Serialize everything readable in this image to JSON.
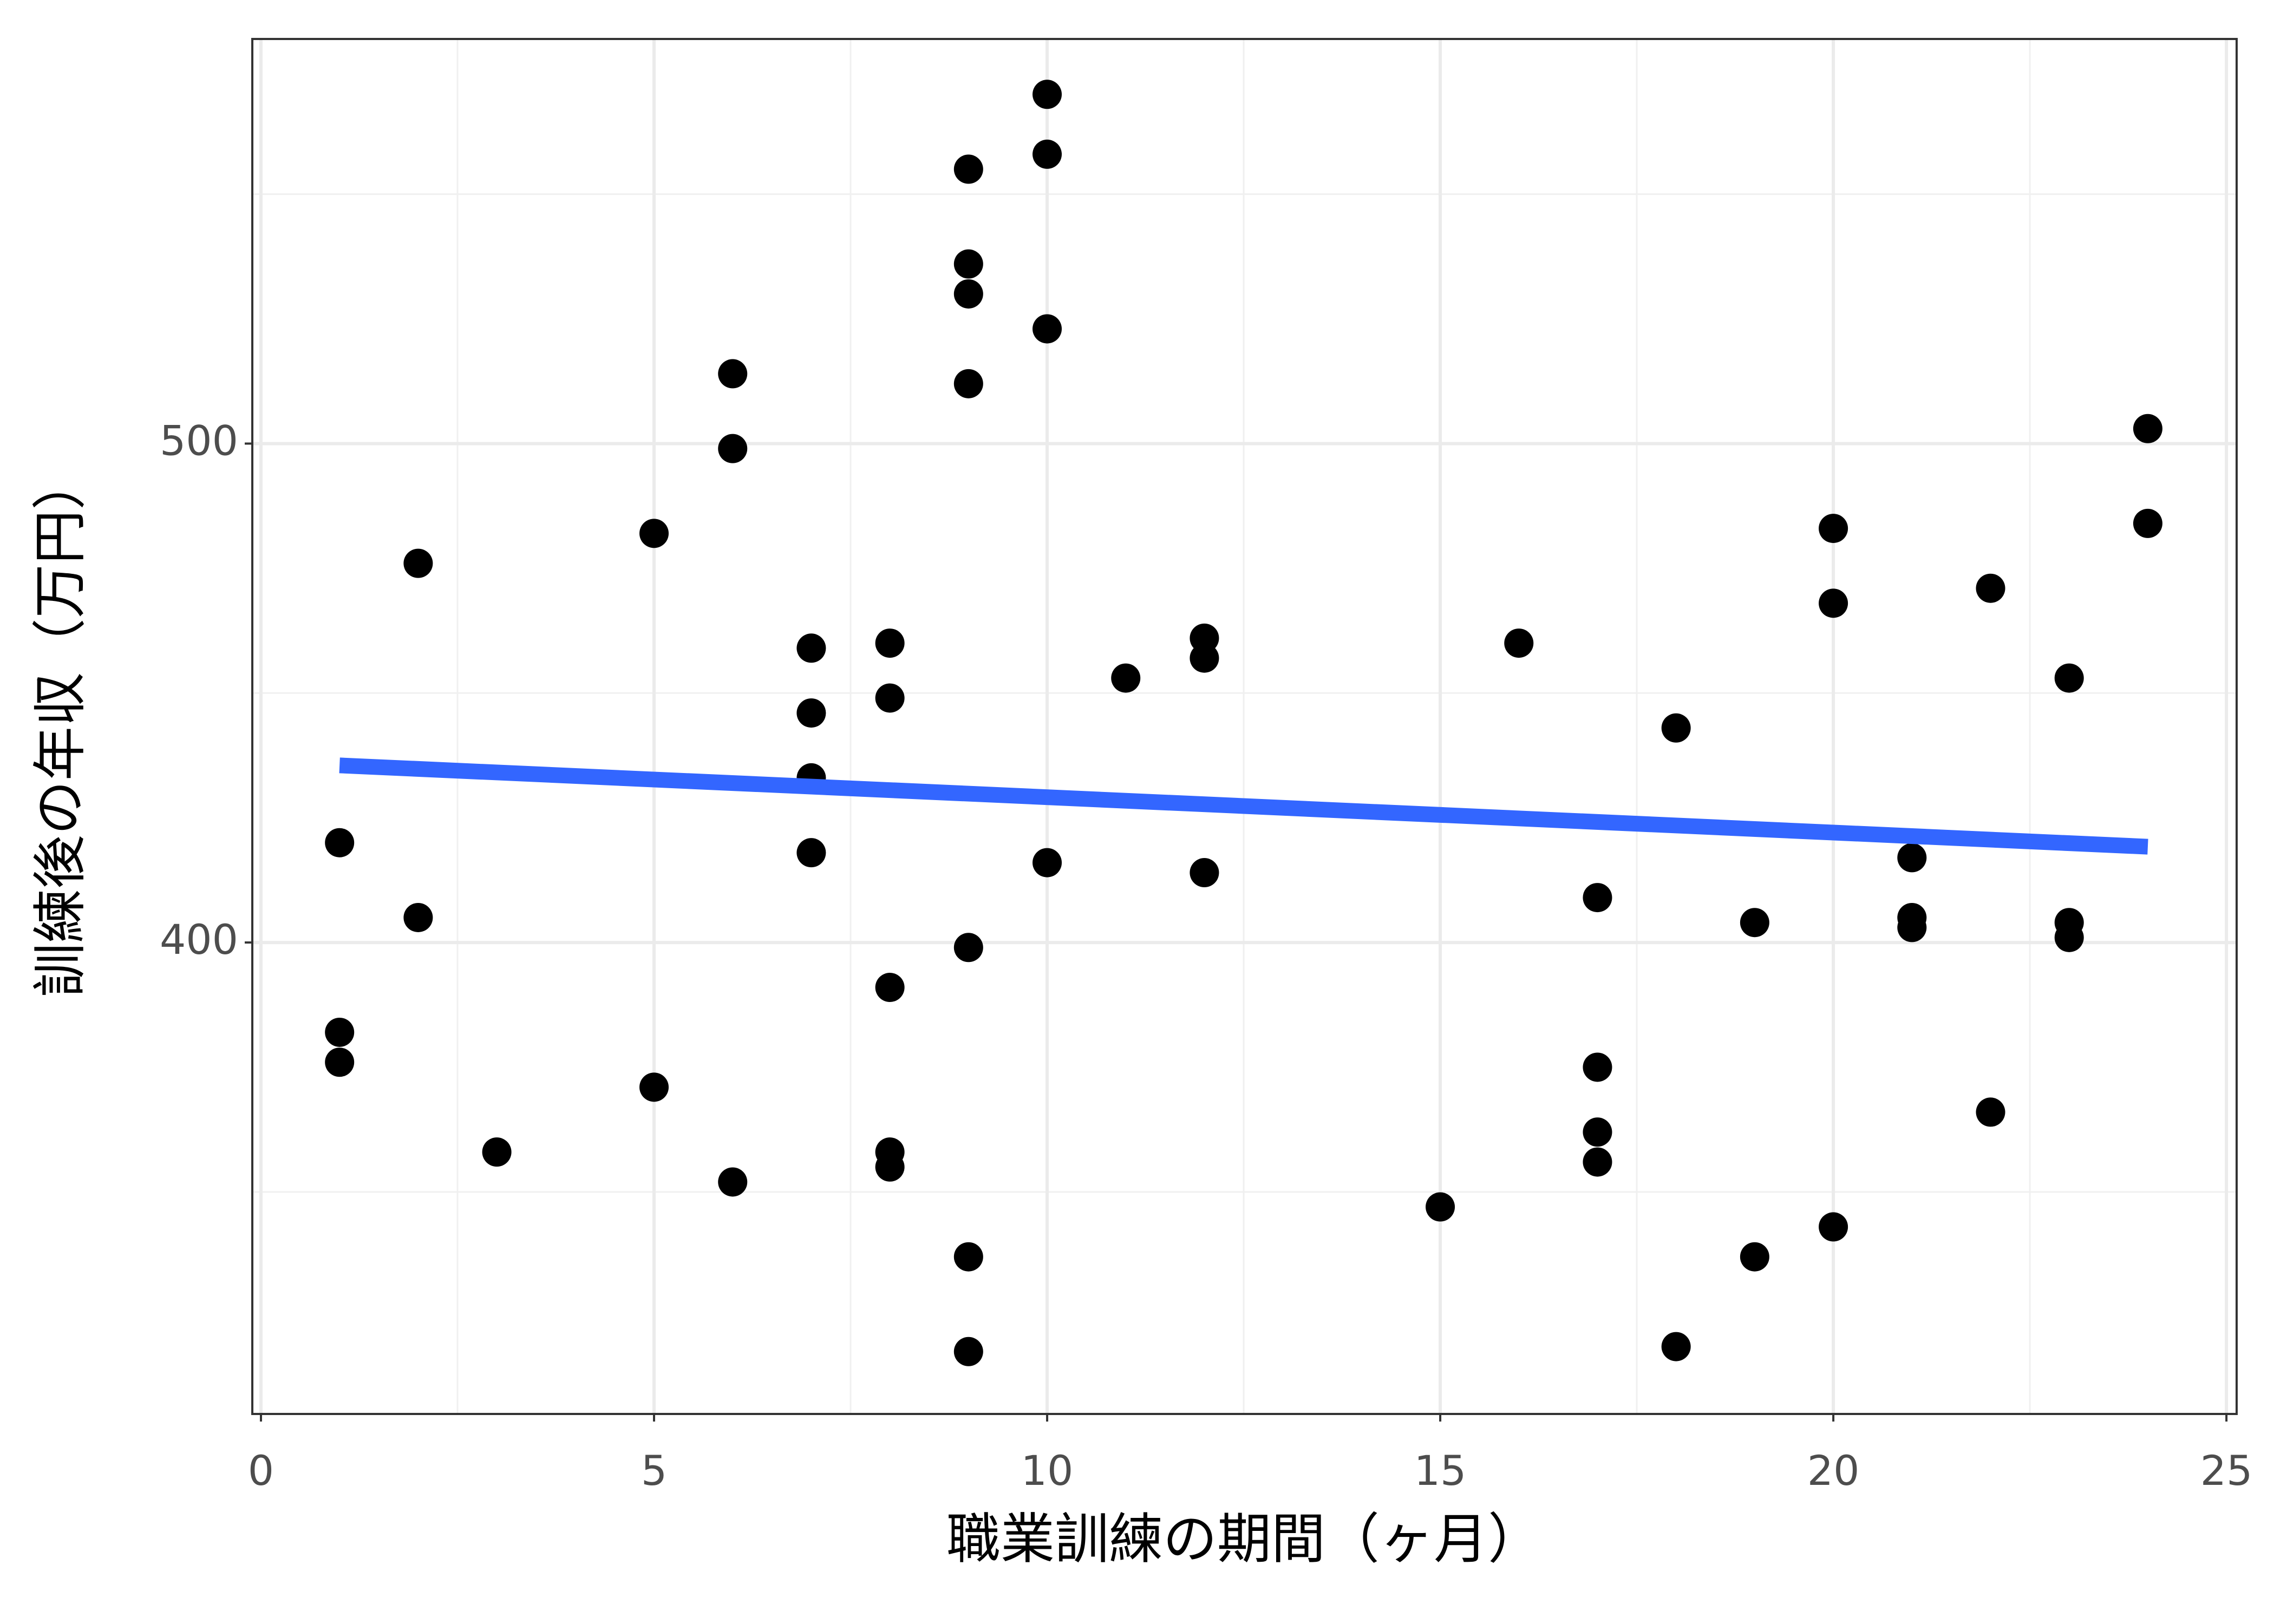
{
  "chart_data": {
    "type": "scatter",
    "xlabel": "職業訓練の期間（ヶ月）",
    "ylabel": "訓練後の年収（万円）",
    "xlim": [
      -0.11,
      25.13
    ],
    "ylim": [
      305.5,
      581.1
    ],
    "xticks": [
      0,
      5,
      10,
      15,
      20,
      25
    ],
    "yticks": [
      400,
      500
    ],
    "xminor": [
      2.5,
      7.5,
      12.5,
      17.5,
      22.5
    ],
    "yminor": [
      350,
      450,
      550
    ],
    "grid": true,
    "series": [
      {
        "mode": "markers",
        "color": "#000000",
        "x": [
          1,
          1,
          1,
          2,
          2,
          3,
          5,
          5,
          6,
          6,
          6,
          7,
          7,
          7,
          7,
          8,
          8,
          8,
          8,
          8,
          9,
          9,
          9,
          9,
          9,
          9,
          9,
          10,
          10,
          10,
          10,
          11,
          12,
          12,
          12,
          15,
          16,
          17,
          17,
          17,
          17,
          18,
          18,
          19,
          19,
          20,
          20,
          20,
          21,
          21,
          21,
          22,
          22,
          23,
          23,
          23,
          24,
          24
        ],
        "values": [
          420,
          382,
          376,
          476,
          405,
          358,
          482,
          371,
          514,
          499,
          352,
          459,
          446,
          433,
          418,
          460,
          449,
          391,
          358,
          355,
          555,
          536,
          530,
          512,
          399,
          337,
          318,
          570,
          558,
          523,
          416,
          453,
          461,
          457,
          414,
          347,
          460,
          409,
          375,
          362,
          356,
          443,
          319,
          404,
          337,
          483,
          468,
          343,
          417,
          405,
          403,
          471,
          366,
          453,
          404,
          401,
          503,
          484
        ]
      },
      {
        "mode": "line",
        "color": "#3366ff",
        "x": [
          1,
          24
        ],
        "values": [
          435.5,
          419.2
        ]
      }
    ]
  }
}
